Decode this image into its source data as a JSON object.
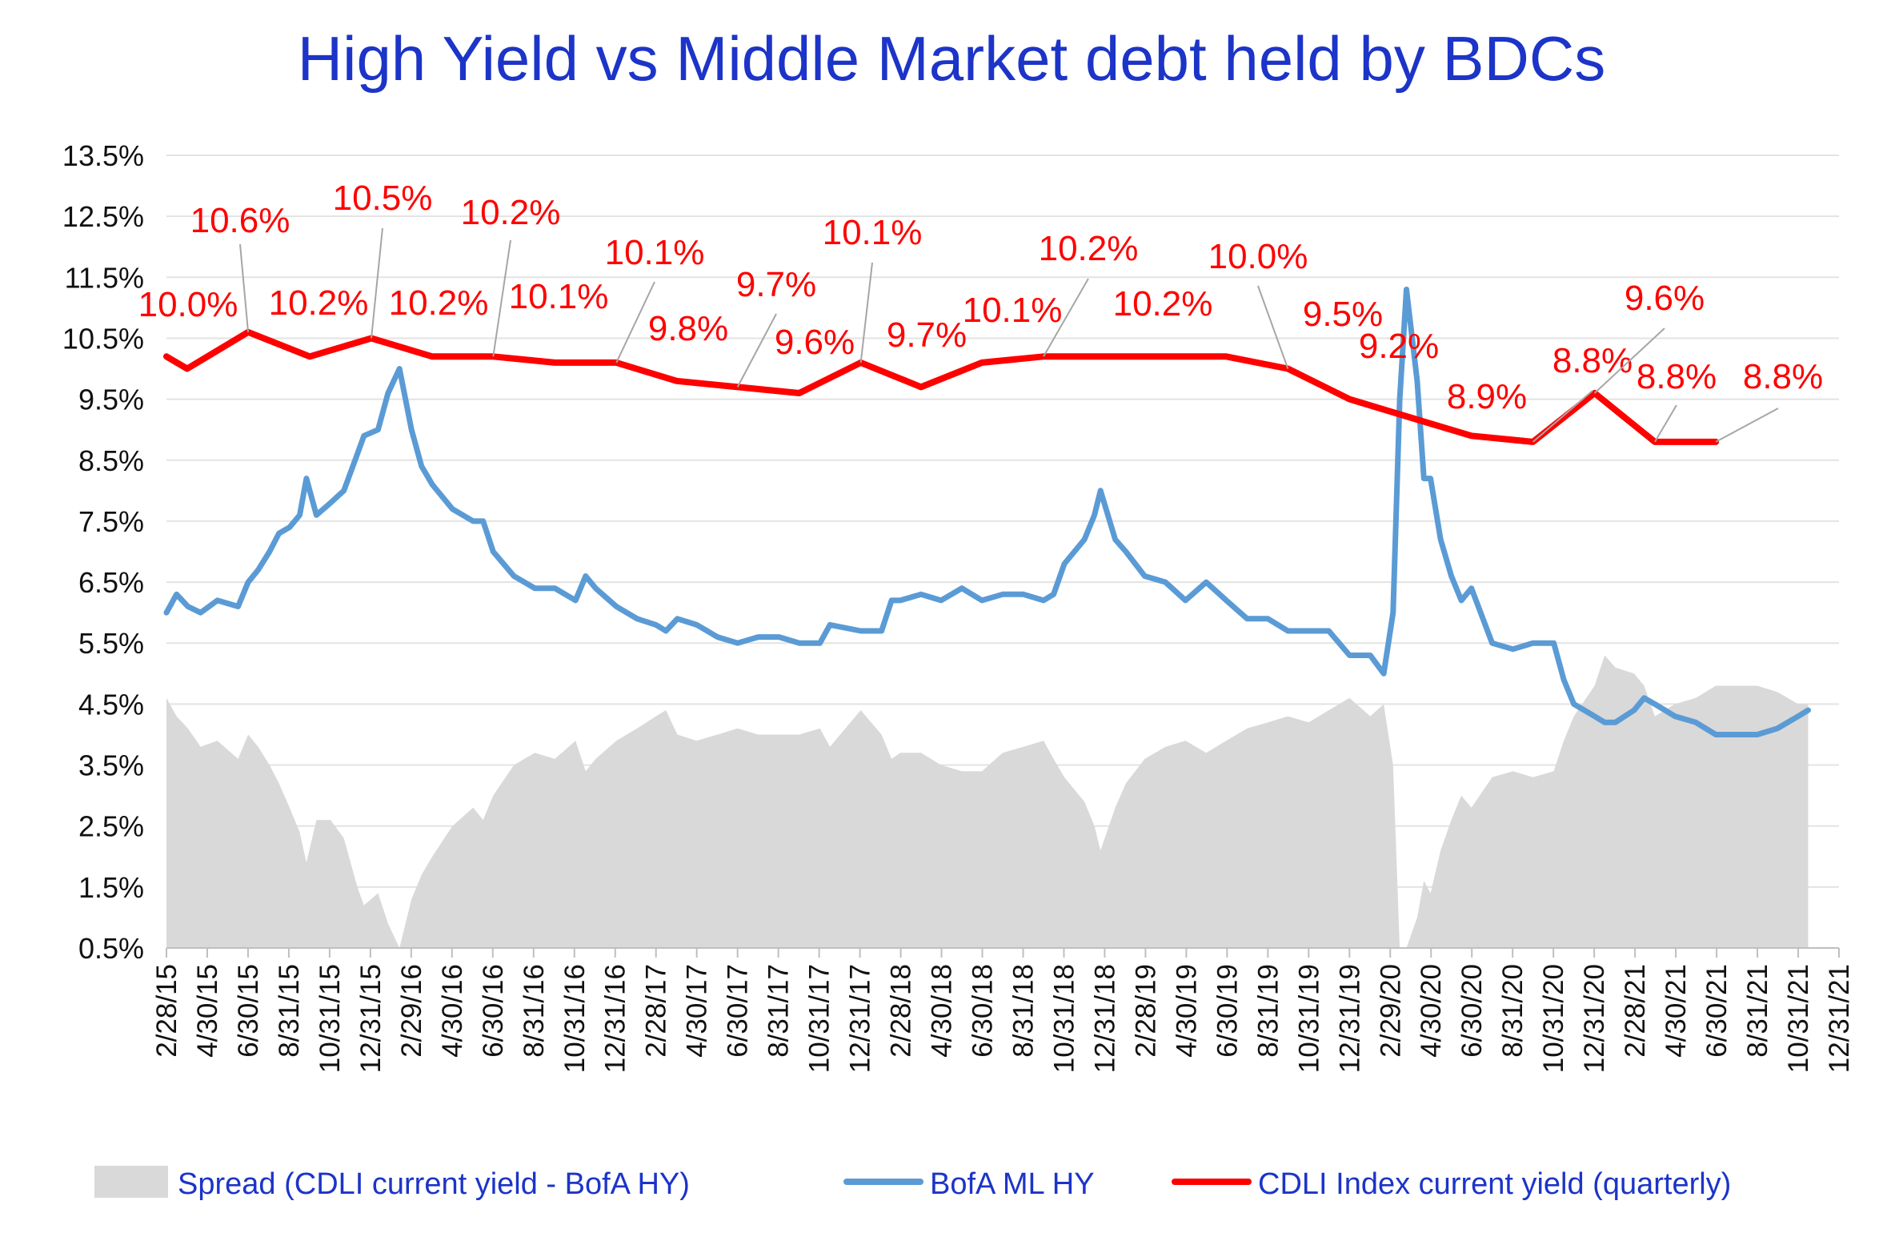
{
  "chart_data": {
    "type": "line",
    "title": "High Yield  vs  Middle Market debt held by BDCs",
    "ylim": [
      0.5,
      13.5
    ],
    "y_ticks": [
      "13.5%",
      "12.5%",
      "11.5%",
      "10.5%",
      "9.5%",
      "8.5%",
      "7.5%",
      "6.5%",
      "5.5%",
      "4.5%",
      "3.5%",
      "2.5%",
      "1.5%",
      "0.5%"
    ],
    "x_range": [
      "2015-02-28",
      "2021-12-31"
    ],
    "x_ticks": [
      "2/28/15",
      "4/30/15",
      "6/30/15",
      "8/31/15",
      "10/31/15",
      "12/31/15",
      "2/29/16",
      "4/30/16",
      "6/30/16",
      "8/31/16",
      "10/31/16",
      "12/31/16",
      "2/28/17",
      "4/30/17",
      "6/30/17",
      "8/31/17",
      "10/31/17",
      "12/31/17",
      "2/28/18",
      "4/30/18",
      "6/30/18",
      "8/31/18",
      "10/31/18",
      "12/31/18",
      "2/28/19",
      "4/30/19",
      "6/30/19",
      "8/31/19",
      "10/31/19",
      "12/31/19",
      "2/29/20",
      "4/30/20",
      "6/30/20",
      "8/31/20",
      "10/31/20",
      "12/31/20",
      "2/28/21",
      "4/30/21",
      "6/30/21",
      "8/31/21",
      "10/31/21",
      "12/31/21"
    ],
    "grid": true,
    "legend_position": "bottom",
    "series": [
      {
        "name": "Spread (CDLI current yield - BofA HY)",
        "type": "area",
        "color": "#d9d9d9",
        "points": [
          [
            "2015-02-28",
            4.6
          ],
          [
            "2015-03-15",
            4.3
          ],
          [
            "2015-04-01",
            4.1
          ],
          [
            "2015-04-20",
            3.8
          ],
          [
            "2015-05-15",
            3.9
          ],
          [
            "2015-06-15",
            3.6
          ],
          [
            "2015-06-30",
            4.0
          ],
          [
            "2015-07-15",
            3.8
          ],
          [
            "2015-08-01",
            3.5
          ],
          [
            "2015-08-15",
            3.2
          ],
          [
            "2015-08-31",
            2.8
          ],
          [
            "2015-09-15",
            2.4
          ],
          [
            "2015-09-25",
            1.9
          ],
          [
            "2015-10-10",
            2.6
          ],
          [
            "2015-10-31",
            2.6
          ],
          [
            "2015-11-20",
            2.3
          ],
          [
            "2015-12-10",
            1.5
          ],
          [
            "2015-12-20",
            1.2
          ],
          [
            "2016-01-10",
            1.4
          ],
          [
            "2016-01-25",
            0.9
          ],
          [
            "2016-02-11",
            0.5
          ],
          [
            "2016-02-29",
            1.3
          ],
          [
            "2016-03-15",
            1.7
          ],
          [
            "2016-03-31",
            2.0
          ],
          [
            "2016-04-30",
            2.5
          ],
          [
            "2016-05-31",
            2.8
          ],
          [
            "2016-06-15",
            2.6
          ],
          [
            "2016-06-30",
            3.0
          ],
          [
            "2016-07-31",
            3.5
          ],
          [
            "2016-08-31",
            3.7
          ],
          [
            "2016-09-30",
            3.6
          ],
          [
            "2016-10-31",
            3.9
          ],
          [
            "2016-11-15",
            3.4
          ],
          [
            "2016-11-30",
            3.6
          ],
          [
            "2016-12-31",
            3.9
          ],
          [
            "2017-01-31",
            4.1
          ],
          [
            "2017-02-28",
            4.3
          ],
          [
            "2017-03-15",
            4.4
          ],
          [
            "2017-04-01",
            4.0
          ],
          [
            "2017-04-30",
            3.9
          ],
          [
            "2017-05-31",
            4.0
          ],
          [
            "2017-06-30",
            4.1
          ],
          [
            "2017-07-31",
            4.0
          ],
          [
            "2017-08-31",
            4.0
          ],
          [
            "2017-09-30",
            4.0
          ],
          [
            "2017-10-31",
            4.1
          ],
          [
            "2017-11-15",
            3.8
          ],
          [
            "2017-12-31",
            4.4
          ],
          [
            "2018-01-31",
            4.0
          ],
          [
            "2018-02-15",
            3.6
          ],
          [
            "2018-02-28",
            3.7
          ],
          [
            "2018-03-31",
            3.7
          ],
          [
            "2018-04-30",
            3.5
          ],
          [
            "2018-05-31",
            3.4
          ],
          [
            "2018-06-30",
            3.4
          ],
          [
            "2018-07-31",
            3.7
          ],
          [
            "2018-08-31",
            3.8
          ],
          [
            "2018-09-30",
            3.9
          ],
          [
            "2018-10-15",
            3.6
          ],
          [
            "2018-10-31",
            3.3
          ],
          [
            "2018-11-30",
            2.9
          ],
          [
            "2018-12-15",
            2.5
          ],
          [
            "2018-12-24",
            2.1
          ],
          [
            "2019-01-15",
            2.8
          ],
          [
            "2019-01-31",
            3.2
          ],
          [
            "2019-02-28",
            3.6
          ],
          [
            "2019-03-31",
            3.8
          ],
          [
            "2019-04-30",
            3.9
          ],
          [
            "2019-05-31",
            3.7
          ],
          [
            "2019-06-30",
            3.9
          ],
          [
            "2019-07-31",
            4.1
          ],
          [
            "2019-08-31",
            4.2
          ],
          [
            "2019-09-30",
            4.3
          ],
          [
            "2019-10-31",
            4.2
          ],
          [
            "2019-11-30",
            4.4
          ],
          [
            "2019-12-31",
            4.6
          ],
          [
            "2020-01-31",
            4.3
          ],
          [
            "2020-02-20",
            4.5
          ],
          [
            "2020-03-05",
            3.5
          ],
          [
            "2020-03-15",
            0.5
          ],
          [
            "2020-03-25",
            0.5
          ],
          [
            "2020-04-10",
            1.0
          ],
          [
            "2020-04-20",
            1.6
          ],
          [
            "2020-04-30",
            1.4
          ],
          [
            "2020-05-15",
            2.1
          ],
          [
            "2020-05-31",
            2.6
          ],
          [
            "2020-06-15",
            3.0
          ],
          [
            "2020-06-30",
            2.8
          ],
          [
            "2020-07-31",
            3.3
          ],
          [
            "2020-08-31",
            3.4
          ],
          [
            "2020-09-30",
            3.3
          ],
          [
            "2020-10-31",
            3.4
          ],
          [
            "2020-11-15",
            3.9
          ],
          [
            "2020-11-30",
            4.3
          ],
          [
            "2020-12-31",
            4.8
          ],
          [
            "2021-01-15",
            5.3
          ],
          [
            "2021-01-31",
            5.1
          ],
          [
            "2021-02-28",
            5.0
          ],
          [
            "2021-03-15",
            4.8
          ],
          [
            "2021-03-31",
            4.3
          ],
          [
            "2021-04-30",
            4.5
          ],
          [
            "2021-05-31",
            4.6
          ],
          [
            "2021-06-30",
            4.8
          ],
          [
            "2021-07-31",
            4.8
          ],
          [
            "2021-08-31",
            4.8
          ],
          [
            "2021-09-30",
            4.7
          ],
          [
            "2021-10-31",
            4.5
          ],
          [
            "2021-11-15",
            4.5
          ]
        ]
      },
      {
        "name": "BofA ML HY",
        "type": "line",
        "color": "#5b9bd5",
        "points": [
          [
            "2015-02-28",
            6.0
          ],
          [
            "2015-03-15",
            6.3
          ],
          [
            "2015-04-01",
            6.1
          ],
          [
            "2015-04-20",
            6.0
          ],
          [
            "2015-05-15",
            6.2
          ],
          [
            "2015-06-15",
            6.1
          ],
          [
            "2015-06-30",
            6.5
          ],
          [
            "2015-07-15",
            6.7
          ],
          [
            "2015-08-01",
            7.0
          ],
          [
            "2015-08-15",
            7.3
          ],
          [
            "2015-08-31",
            7.4
          ],
          [
            "2015-09-15",
            7.6
          ],
          [
            "2015-09-25",
            8.2
          ],
          [
            "2015-10-10",
            7.6
          ],
          [
            "2015-10-31",
            7.8
          ],
          [
            "2015-11-20",
            8.0
          ],
          [
            "2015-12-10",
            8.6
          ],
          [
            "2015-12-20",
            8.9
          ],
          [
            "2016-01-10",
            9.0
          ],
          [
            "2016-01-25",
            9.6
          ],
          [
            "2016-02-11",
            10.0
          ],
          [
            "2016-02-29",
            9.0
          ],
          [
            "2016-03-15",
            8.4
          ],
          [
            "2016-03-31",
            8.1
          ],
          [
            "2016-04-30",
            7.7
          ],
          [
            "2016-05-31",
            7.5
          ],
          [
            "2016-06-15",
            7.5
          ],
          [
            "2016-06-30",
            7.0
          ],
          [
            "2016-07-31",
            6.6
          ],
          [
            "2016-08-31",
            6.4
          ],
          [
            "2016-09-30",
            6.4
          ],
          [
            "2016-10-31",
            6.2
          ],
          [
            "2016-11-15",
            6.6
          ],
          [
            "2016-11-30",
            6.4
          ],
          [
            "2016-12-31",
            6.1
          ],
          [
            "2017-01-31",
            5.9
          ],
          [
            "2017-02-28",
            5.8
          ],
          [
            "2017-03-15",
            5.7
          ],
          [
            "2017-04-01",
            5.9
          ],
          [
            "2017-04-30",
            5.8
          ],
          [
            "2017-05-31",
            5.6
          ],
          [
            "2017-06-30",
            5.5
          ],
          [
            "2017-07-31",
            5.6
          ],
          [
            "2017-08-31",
            5.6
          ],
          [
            "2017-09-30",
            5.5
          ],
          [
            "2017-10-31",
            5.5
          ],
          [
            "2017-11-15",
            5.8
          ],
          [
            "2017-12-31",
            5.7
          ],
          [
            "2018-01-31",
            5.7
          ],
          [
            "2018-02-15",
            6.2
          ],
          [
            "2018-02-28",
            6.2
          ],
          [
            "2018-03-31",
            6.3
          ],
          [
            "2018-04-30",
            6.2
          ],
          [
            "2018-05-31",
            6.4
          ],
          [
            "2018-06-30",
            6.2
          ],
          [
            "2018-07-31",
            6.3
          ],
          [
            "2018-08-31",
            6.3
          ],
          [
            "2018-09-30",
            6.2
          ],
          [
            "2018-10-15",
            6.3
          ],
          [
            "2018-10-31",
            6.8
          ],
          [
            "2018-11-30",
            7.2
          ],
          [
            "2018-12-15",
            7.6
          ],
          [
            "2018-12-24",
            8.0
          ],
          [
            "2019-01-15",
            7.2
          ],
          [
            "2019-01-31",
            7.0
          ],
          [
            "2019-02-28",
            6.6
          ],
          [
            "2019-03-31",
            6.5
          ],
          [
            "2019-04-30",
            6.2
          ],
          [
            "2019-05-31",
            6.5
          ],
          [
            "2019-06-30",
            6.2
          ],
          [
            "2019-07-31",
            5.9
          ],
          [
            "2019-08-31",
            5.9
          ],
          [
            "2019-09-30",
            5.7
          ],
          [
            "2019-10-31",
            5.7
          ],
          [
            "2019-11-30",
            5.7
          ],
          [
            "2019-12-31",
            5.3
          ],
          [
            "2020-01-31",
            5.3
          ],
          [
            "2020-02-20",
            5.0
          ],
          [
            "2020-03-05",
            6.0
          ],
          [
            "2020-03-15",
            9.5
          ],
          [
            "2020-03-25",
            11.3
          ],
          [
            "2020-04-10",
            9.8
          ],
          [
            "2020-04-20",
            8.2
          ],
          [
            "2020-04-30",
            8.2
          ],
          [
            "2020-05-15",
            7.2
          ],
          [
            "2020-05-31",
            6.6
          ],
          [
            "2020-06-15",
            6.2
          ],
          [
            "2020-06-30",
            6.4
          ],
          [
            "2020-07-31",
            5.5
          ],
          [
            "2020-08-31",
            5.4
          ],
          [
            "2020-09-30",
            5.5
          ],
          [
            "2020-10-31",
            5.5
          ],
          [
            "2020-11-15",
            4.9
          ],
          [
            "2020-11-30",
            4.5
          ],
          [
            "2020-12-31",
            4.3
          ],
          [
            "2021-01-15",
            4.2
          ],
          [
            "2021-01-31",
            4.2
          ],
          [
            "2021-02-28",
            4.4
          ],
          [
            "2021-03-15",
            4.6
          ],
          [
            "2021-03-31",
            4.5
          ],
          [
            "2021-04-30",
            4.3
          ],
          [
            "2021-05-31",
            4.2
          ],
          [
            "2021-06-30",
            4.0
          ],
          [
            "2021-07-31",
            4.0
          ],
          [
            "2021-08-31",
            4.0
          ],
          [
            "2021-09-30",
            4.1
          ],
          [
            "2021-10-31",
            4.3
          ],
          [
            "2021-11-15",
            4.4
          ]
        ]
      },
      {
        "name": "CDLI Index current yield (quarterly)",
        "type": "line",
        "color": "#ff0000",
        "points": [
          [
            "2015-02-28",
            10.2
          ],
          [
            "2015-03-31",
            10.0
          ],
          [
            "2015-06-30",
            10.6
          ],
          [
            "2015-09-30",
            10.2
          ],
          [
            "2015-12-31",
            10.5
          ],
          [
            "2016-03-31",
            10.2
          ],
          [
            "2016-06-30",
            10.2
          ],
          [
            "2016-09-30",
            10.1
          ],
          [
            "2016-12-31",
            10.1
          ],
          [
            "2017-03-31",
            9.8
          ],
          [
            "2017-06-30",
            9.7
          ],
          [
            "2017-09-30",
            9.6
          ],
          [
            "2017-12-31",
            10.1
          ],
          [
            "2018-03-31",
            9.7
          ],
          [
            "2018-06-30",
            10.1
          ],
          [
            "2018-09-30",
            10.2
          ],
          [
            "2018-12-31",
            10.2
          ],
          [
            "2019-03-31",
            10.2
          ],
          [
            "2019-06-30",
            10.2
          ],
          [
            "2019-09-30",
            10.0
          ],
          [
            "2019-12-31",
            9.5
          ],
          [
            "2020-03-31",
            9.2
          ],
          [
            "2020-06-30",
            8.9
          ],
          [
            "2020-09-30",
            8.8
          ],
          [
            "2020-12-31",
            9.6
          ],
          [
            "2021-03-31",
            8.8
          ],
          [
            "2021-06-30",
            8.8
          ]
        ]
      }
    ],
    "data_labels": [
      "10.0%",
      "10.6%",
      "10.2%",
      "10.5%",
      "10.2%",
      "10.2%",
      "10.1%",
      "10.1%",
      "9.8%",
      "9.7%",
      "9.6%",
      "10.1%",
      "9.7%",
      "10.1%",
      "10.2%",
      "10.2%",
      "10.0%",
      "9.5%",
      "9.2%",
      "8.9%",
      "8.8%",
      "9.6%",
      "8.8%",
      "8.8%"
    ]
  }
}
